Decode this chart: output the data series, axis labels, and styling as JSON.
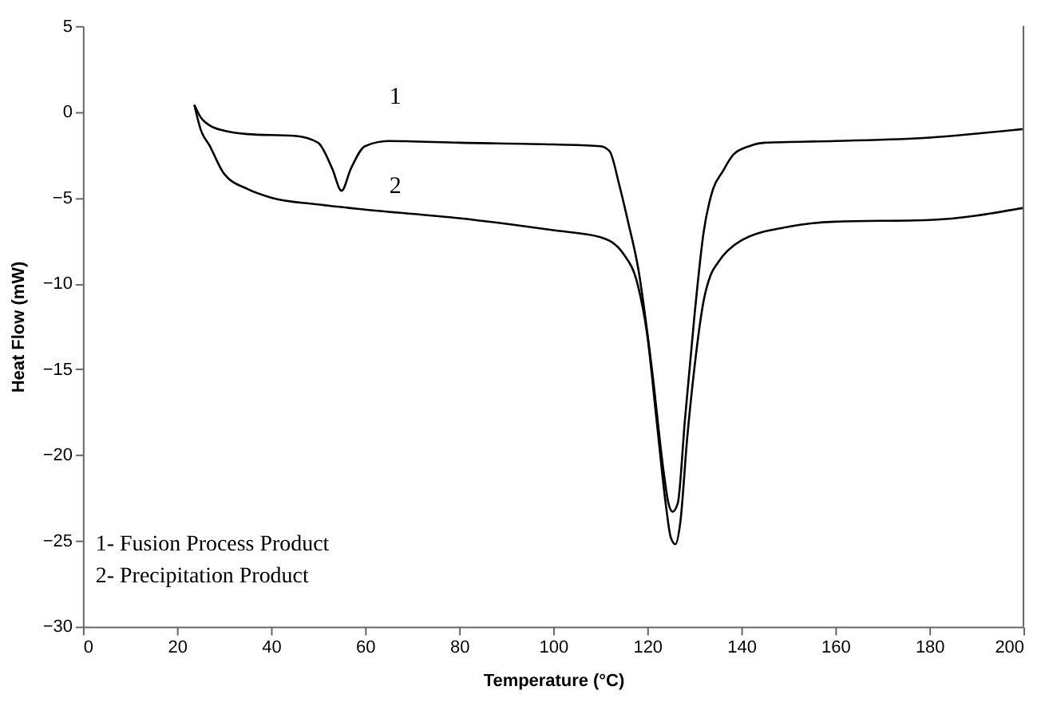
{
  "chart_data": {
    "type": "line",
    "xlabel": "Temperature (°C)",
    "ylabel": "Heat Flow (mW)",
    "xlim": [
      0,
      200
    ],
    "xticks": [
      0,
      20,
      40,
      60,
      80,
      100,
      120,
      140,
      160,
      180,
      200
    ],
    "ylim": [
      -30,
      5
    ],
    "yticks": [
      -30,
      -25,
      -20,
      -15,
      -10,
      -5,
      0,
      5
    ],
    "grid": false,
    "marker": "none",
    "line_style": "solid",
    "series": [
      {
        "color": "#000000",
        "x": [
          23.7,
          25,
          27,
          30,
          35,
          45,
          50,
          53,
          55,
          57,
          60,
          65,
          80,
          100,
          110,
          112,
          114,
          116,
          118,
          121,
          123.5,
          124.5,
          125.4,
          126.5,
          128,
          130,
          132,
          134,
          136,
          138.3,
          141.7,
          145,
          160,
          180,
          200
        ],
        "values": [
          0.4,
          -0.3,
          -0.8,
          -1.1,
          -1.3,
          -1.4,
          -1.8,
          -3.3,
          -4.6,
          -3.3,
          -2.0,
          -1.7,
          -1.8,
          -1.9,
          -2.0,
          -2.3,
          -4.2,
          -6.5,
          -9,
          -15,
          -21,
          -22.8,
          -23.3,
          -22.8,
          -18,
          -12,
          -7,
          -4.5,
          -3.5,
          -2.5,
          -2.0,
          -1.8,
          -1.7,
          -1.5,
          -1.0
        ]
      },
      {
        "color": "#000000",
        "x": [
          23.7,
          25,
          27,
          30,
          35,
          40,
          50,
          60,
          80,
          100,
          110,
          115,
          118,
          120,
          122,
          124,
          125,
          126,
          127,
          128.5,
          130,
          132,
          133.5,
          135,
          140,
          150,
          160,
          180,
          200
        ],
        "values": [
          0.4,
          -1.0,
          -2.0,
          -3.6,
          -4.5,
          -5.0,
          -5.4,
          -5.7,
          -6.2,
          -6.9,
          -7.3,
          -8.3,
          -10.1,
          -13,
          -18,
          -23,
          -24.8,
          -25.2,
          -24,
          -19,
          -15,
          -11,
          -9.5,
          -8.8,
          -7.5,
          -6.7,
          -6.4,
          -6.3,
          -5.6
        ]
      }
    ],
    "annotations": [
      "1",
      "2",
      "1-   Fusion Process Product",
      "2-   Precipitation Product"
    ]
  }
}
